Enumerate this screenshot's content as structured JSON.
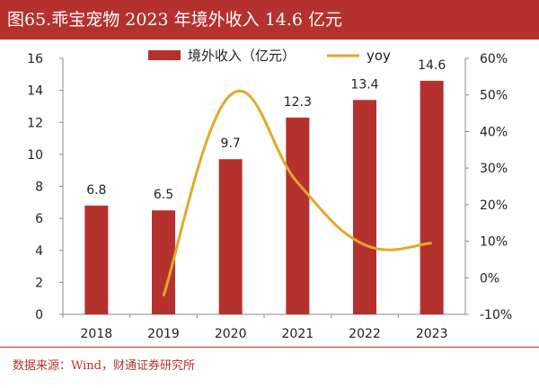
{
  "title": "图65.乖宝宠物 2023 年境外收入 14.6 亿元",
  "source": "数据来源：Wind，财通证券研究所",
  "chart_data": {
    "type": "bar",
    "categories": [
      "2018",
      "2019",
      "2020",
      "2021",
      "2022",
      "2023"
    ],
    "series": [
      {
        "name": "境外收入（亿元）",
        "type": "bar",
        "axis": "left",
        "values": [
          6.8,
          6.5,
          9.7,
          12.3,
          13.4,
          14.6
        ],
        "color": "#b5312d"
      },
      {
        "name": "yoy",
        "type": "line",
        "axis": "right",
        "values": [
          null,
          -5,
          50,
          26,
          9,
          9.5
        ],
        "color": "#e3a82b"
      }
    ],
    "y_left": {
      "min": 0,
      "max": 16,
      "ticks": [
        "0",
        "2",
        "4",
        "6",
        "8",
        "10",
        "12",
        "14",
        "16"
      ]
    },
    "y_right": {
      "min": -10,
      "max": 60,
      "ticks": [
        "-10%",
        "0%",
        "10%",
        "20%",
        "30%",
        "40%",
        "50%",
        "60%"
      ]
    },
    "data_labels": [
      "6.8",
      "6.5",
      "9.7",
      "12.3",
      "13.4",
      "14.6"
    ],
    "legend_position": "top",
    "grid": false
  }
}
